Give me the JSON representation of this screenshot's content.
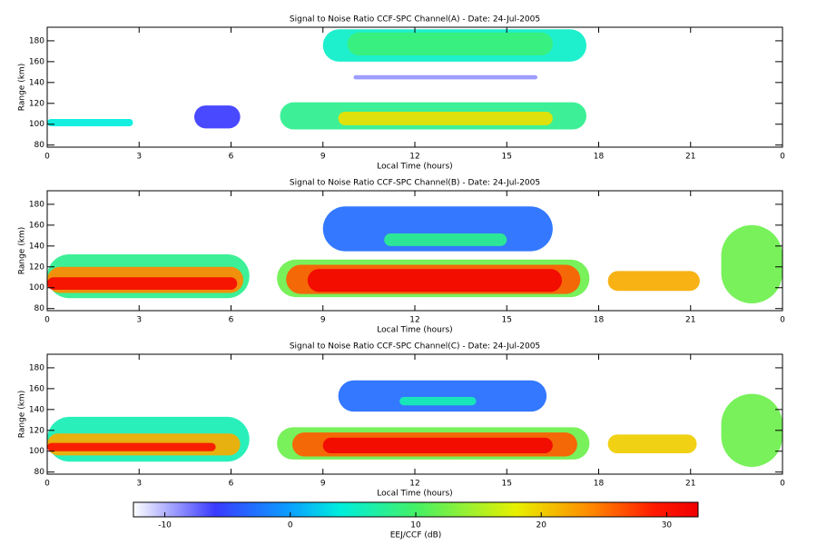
{
  "chart_data": [
    {
      "type": "heatmap",
      "title": "Signal to Noise Ratio CCF-SPC Channel(A) - Date: 24-Jul-2005",
      "x_label": "Local Time (hours)",
      "y_label": "Range (km)",
      "xlim": [
        0,
        24
      ],
      "xticks": [
        0,
        3,
        6,
        9,
        12,
        15,
        18,
        21,
        {
          "value": 24,
          "label": "0"
        }
      ],
      "ylim": [
        78,
        193
      ],
      "yticks": [
        80,
        100,
        120,
        140,
        160,
        180
      ],
      "echoes": [
        {
          "x": [
            9,
            17.6
          ],
          "y": [
            160,
            191
          ],
          "value": 5
        },
        {
          "x": [
            9.8,
            16.5
          ],
          "y": [
            166,
            188
          ],
          "value": 9
        },
        {
          "x": [
            7.6,
            17.6
          ],
          "y": [
            95,
            121
          ],
          "value": 8
        },
        {
          "x": [
            9.5,
            16.5
          ],
          "y": [
            99,
            112
          ],
          "value": 19
        },
        {
          "x": [
            0,
            2.8
          ],
          "y": [
            98,
            105
          ],
          "value": 4
        },
        {
          "x": [
            4.8,
            6.3
          ],
          "y": [
            96,
            118
          ],
          "value": -6
        },
        {
          "x": [
            10,
            16
          ],
          "y": [
            143,
            147
          ],
          "value": -9
        }
      ]
    },
    {
      "type": "heatmap",
      "title": "Signal to Noise Ratio CCF-SPC Channel(B) - Date: 24-Jul-2005",
      "x_label": "Local Time (hours)",
      "y_label": "Range (km)",
      "xlim": [
        0,
        24
      ],
      "xticks": [
        0,
        3,
        6,
        9,
        12,
        15,
        18,
        21,
        {
          "value": 24,
          "label": "0"
        }
      ],
      "ylim": [
        78,
        193
      ],
      "yticks": [
        80,
        100,
        120,
        140,
        160,
        180
      ],
      "echoes": [
        {
          "x": [
            0,
            6.6
          ],
          "y": [
            90,
            132
          ],
          "value": 8
        },
        {
          "x": [
            0,
            6.4
          ],
          "y": [
            95,
            120
          ],
          "value": 24
        },
        {
          "x": [
            0,
            6.2
          ],
          "y": [
            98,
            110
          ],
          "value": 31
        },
        {
          "x": [
            7.5,
            17.7
          ],
          "y": [
            91,
            127
          ],
          "value": 12
        },
        {
          "x": [
            7.8,
            17.4
          ],
          "y": [
            94,
            122
          ],
          "value": 26
        },
        {
          "x": [
            8.5,
            16.8
          ],
          "y": [
            96,
            118
          ],
          "value": 32
        },
        {
          "x": [
            9,
            16.5
          ],
          "y": [
            135,
            178
          ],
          "value": -3
        },
        {
          "x": [
            11,
            15
          ],
          "y": [
            140,
            152
          ],
          "value": 8
        },
        {
          "x": [
            18.3,
            21.3
          ],
          "y": [
            97,
            116
          ],
          "value": 22
        },
        {
          "x": [
            22,
            24
          ],
          "y": [
            85,
            160
          ],
          "value": 12
        }
      ]
    },
    {
      "type": "heatmap",
      "title": "Signal to Noise Ratio CCF-SPC Channel(C) - Date: 24-Jul-2005",
      "x_label": "Local Time (hours)",
      "y_label": "Range (km)",
      "xlim": [
        0,
        24
      ],
      "xticks": [
        0,
        3,
        6,
        9,
        12,
        15,
        18,
        21,
        {
          "value": 24,
          "label": "0"
        }
      ],
      "ylim": [
        78,
        193
      ],
      "yticks": [
        80,
        100,
        120,
        140,
        160,
        180
      ],
      "echoes": [
        {
          "x": [
            0,
            6.6
          ],
          "y": [
            90,
            133
          ],
          "value": 6
        },
        {
          "x": [
            0,
            6.3
          ],
          "y": [
            96,
            117
          ],
          "value": 22
        },
        {
          "x": [
            0,
            5.5
          ],
          "y": [
            100,
            108
          ],
          "value": 30
        },
        {
          "x": [
            7.5,
            17.7
          ],
          "y": [
            92,
            123
          ],
          "value": 12
        },
        {
          "x": [
            8,
            17.3
          ],
          "y": [
            95,
            118
          ],
          "value": 26
        },
        {
          "x": [
            9,
            16.5
          ],
          "y": [
            98,
            113
          ],
          "value": 32
        },
        {
          "x": [
            9.5,
            16.3
          ],
          "y": [
            138,
            168
          ],
          "value": -3
        },
        {
          "x": [
            11.5,
            14
          ],
          "y": [
            144,
            152
          ],
          "value": 6
        },
        {
          "x": [
            18.3,
            21.2
          ],
          "y": [
            98,
            116
          ],
          "value": 20
        },
        {
          "x": [
            22,
            24
          ],
          "y": [
            85,
            155
          ],
          "value": 12
        }
      ]
    }
  ],
  "colorbar": {
    "label": "EEJ/CCF (dB)",
    "clim": [
      -12.5,
      32.5
    ],
    "ticks": [
      {
        "value": -10,
        "label": "-10"
      },
      0,
      10,
      20,
      30
    ],
    "colorscale": [
      [
        -12.5,
        "#ffffff"
      ],
      [
        -6,
        "#3a3aff"
      ],
      [
        0,
        "#0aa0ff"
      ],
      [
        4,
        "#00eedd"
      ],
      [
        10,
        "#44f066"
      ],
      [
        18,
        "#e8f000"
      ],
      [
        24,
        "#ff8800"
      ],
      [
        29,
        "#ff1a00"
      ],
      [
        32.5,
        "#f00000"
      ]
    ]
  }
}
